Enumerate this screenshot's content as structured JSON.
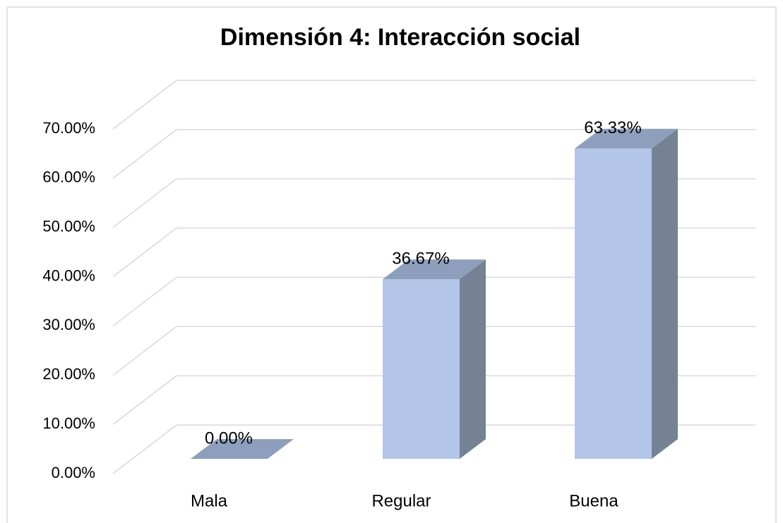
{
  "chart_data": {
    "type": "bar3d",
    "title": "Dimensión 4: Interacción social",
    "categories": [
      "Mala",
      "Regular",
      "Buena"
    ],
    "values": [
      0,
      36.67,
      63.33
    ],
    "value_labels": [
      "0.00%",
      "36.67%",
      "63.33%"
    ],
    "colors": {
      "front": "#b4c6e7",
      "top": "#8e9fbd",
      "side": "#748294"
    },
    "ylim": [
      0,
      70
    ],
    "yticks": [
      {
        "value": 0,
        "label": "0.00%"
      },
      {
        "value": 10,
        "label": "10.00%"
      },
      {
        "value": 20,
        "label": "20.00%"
      },
      {
        "value": 30,
        "label": "30.00%"
      },
      {
        "value": 40,
        "label": "40.00%"
      },
      {
        "value": 50,
        "label": "50.00%"
      },
      {
        "value": 60,
        "label": "60.00%"
      },
      {
        "value": 70,
        "label": "70.00%"
      }
    ],
    "grid": true
  }
}
